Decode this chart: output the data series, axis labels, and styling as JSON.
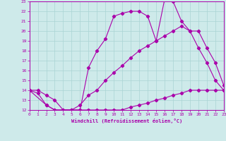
{
  "xlabel": "Windchill (Refroidissement éolien,°C)",
  "background_color": "#ceeaea",
  "line_color": "#aa00aa",
  "grid_color": "#aad4d4",
  "xlim": [
    0,
    23
  ],
  "ylim": [
    12,
    23
  ],
  "yticks": [
    12,
    13,
    14,
    15,
    16,
    17,
    18,
    19,
    20,
    21,
    22,
    23
  ],
  "xticks": [
    0,
    1,
    2,
    3,
    4,
    5,
    6,
    7,
    8,
    9,
    10,
    11,
    12,
    13,
    14,
    15,
    16,
    17,
    18,
    19,
    20,
    21,
    22,
    23
  ],
  "series": [
    {
      "x": [
        0,
        1,
        2,
        3,
        4,
        5,
        6,
        7,
        8,
        9,
        10,
        11,
        12,
        13,
        14,
        15,
        16,
        17,
        18,
        19,
        20,
        21,
        22,
        23
      ],
      "y": [
        14,
        13.7,
        12.5,
        12.0,
        12.0,
        12.0,
        12.0,
        12.0,
        12.0,
        12.0,
        12.0,
        12.0,
        12.3,
        12.5,
        12.7,
        13.0,
        13.2,
        13.5,
        13.7,
        14.0,
        14.0,
        14.0,
        14.0,
        14.0
      ]
    },
    {
      "x": [
        0,
        1,
        2,
        3,
        4,
        5,
        6,
        7,
        8,
        9,
        10,
        11,
        12,
        13,
        14,
        15,
        16,
        17,
        18,
        19,
        20,
        21,
        22,
        23
      ],
      "y": [
        14,
        14,
        13.5,
        13.0,
        12.0,
        12.0,
        12.5,
        13.5,
        14.0,
        15.0,
        15.8,
        16.5,
        17.3,
        18.0,
        18.5,
        19.0,
        19.5,
        20.0,
        20.5,
        20.0,
        18.3,
        16.8,
        15.0,
        14.0
      ]
    },
    {
      "x": [
        0,
        2,
        3,
        4,
        5,
        6,
        7,
        8,
        9,
        10,
        11,
        12,
        13,
        14,
        15,
        16,
        17,
        18,
        19,
        20,
        21,
        22,
        23
      ],
      "y": [
        14,
        12.5,
        12.0,
        12.0,
        12.0,
        12.0,
        16.3,
        18.0,
        19.2,
        21.5,
        21.8,
        22.0,
        22.0,
        21.5,
        19.0,
        23.2,
        23.0,
        21.0,
        20.0,
        20.0,
        18.3,
        16.8,
        14.5
      ]
    }
  ]
}
